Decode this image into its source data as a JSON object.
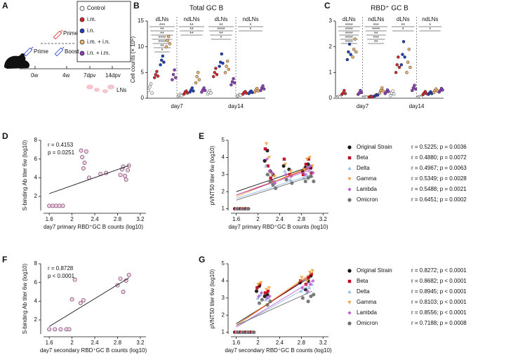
{
  "panel_a": {
    "letter": "A",
    "legend": [
      {
        "name": "Control",
        "color": "#ffffff"
      },
      {
        "name": "i.m.",
        "color": "#d7262b"
      },
      {
        "name": "i.n.",
        "color": "#1f3fbf"
      },
      {
        "name": "i.m. + i.n.",
        "color": "#f3b36b"
      },
      {
        "name": "i.n. + i.m.",
        "color": "#8e3fbf"
      }
    ],
    "prime_single": "Prime",
    "prime": "Prime",
    "boost": "Boost",
    "timeline": [
      "0w",
      "4w",
      "7dpv",
      "14dpv"
    ],
    "lns": "LNs"
  },
  "chart_data": [
    {
      "type": "dot",
      "letter": "B",
      "title": "Total GC B",
      "ylabel": "Cell counts (× 10⁵)",
      "ylim": [
        0,
        15
      ],
      "yticks": [
        0,
        5,
        10,
        15
      ],
      "subsets": [
        "dLNs",
        "ndLNs",
        "dLNs",
        "ndLNs"
      ],
      "days": [
        "day7",
        "day14"
      ],
      "colors": [
        "#ffffff",
        "#d7262b",
        "#1f3fbf",
        "#f3b36b",
        "#8e3fbf"
      ],
      "values": [
        [
          [
            1.5,
            2.2,
            2.8,
            1.0
          ],
          [
            4.0,
            4.6,
            5.2,
            4.3
          ],
          [
            6.5,
            7.4,
            8.2,
            7.0
          ],
          [
            10.0,
            11.2,
            12.0,
            10.6
          ],
          [
            3.6,
            4.6,
            5.5,
            4.0
          ]
        ],
        [
          [
            0.4,
            0.6,
            0.8,
            0.5
          ],
          [
            0.8,
            1.2,
            1.4,
            1.0
          ],
          [
            1.2,
            1.6,
            2.0,
            1.4
          ],
          [
            3.0,
            4.2,
            5.0,
            3.6
          ],
          [
            1.2,
            1.6,
            2.0,
            1.5
          ]
        ],
        [
          [
            0.8,
            1.2,
            1.5,
            1.0
          ],
          [
            4.2,
            5.0,
            5.8,
            4.6
          ],
          [
            6.2,
            7.0,
            8.6,
            6.8
          ],
          [
            5.0,
            6.2,
            7.2,
            5.6
          ],
          [
            2.6,
            3.2,
            3.8,
            3.0
          ]
        ],
        [
          [
            0.4,
            0.5,
            0.7,
            0.6
          ],
          [
            0.8,
            1.1,
            1.3,
            1.0
          ],
          [
            0.9,
            1.2,
            1.4,
            1.1
          ],
          [
            1.2,
            1.6,
            1.9,
            1.4
          ],
          [
            1.5,
            2.0,
            2.4,
            1.8
          ]
        ]
      ],
      "significance": [
        [
          "***",
          "**",
          "**",
          "****",
          "****",
          "**",
          "*"
        ],
        [
          "**",
          "**",
          "**"
        ],
        [
          "**",
          "****",
          "**",
          "*"
        ],
        [
          "*",
          "*"
        ]
      ]
    },
    {
      "type": "dot",
      "letter": "C",
      "title": "RBD⁺ GC B",
      "ylim": [
        0,
        3
      ],
      "yticks": [
        0,
        1,
        2,
        3
      ],
      "subsets": [
        "dLNs",
        "ndLNs",
        "dLNs",
        "ndLNs"
      ],
      "days": [
        "day7",
        "day14"
      ],
      "colors": [
        "#ffffff",
        "#d7262b",
        "#1f3fbf",
        "#f3b36b",
        "#8e3fbf"
      ],
      "values": [
        [
          [
            0.03,
            0.05,
            0.08,
            0.04
          ],
          [
            0.15,
            0.2,
            0.3,
            0.18
          ],
          [
            1.5,
            1.8,
            2.1,
            1.7
          ],
          [
            1.6,
            1.9,
            2.3,
            1.8
          ],
          [
            0.15,
            0.2,
            0.3,
            0.22
          ]
        ],
        [
          [
            0.03,
            0.04,
            0.05,
            0.04
          ],
          [
            0.04,
            0.06,
            0.08,
            0.05
          ],
          [
            0.08,
            0.1,
            0.14,
            0.12
          ],
          [
            0.2,
            0.3,
            0.4,
            0.28
          ],
          [
            0.18,
            0.24,
            0.32,
            0.26
          ]
        ],
        [
          [
            0.1,
            0.2,
            0.28,
            0.16
          ],
          [
            1.0,
            1.3,
            1.6,
            1.2
          ],
          [
            1.3,
            1.7,
            2.2,
            1.6
          ],
          [
            1.0,
            1.4,
            1.9,
            1.2
          ],
          [
            0.3,
            0.4,
            0.5,
            0.36
          ]
        ],
        [
          [
            0.03,
            0.05,
            0.07,
            0.04
          ],
          [
            0.14,
            0.2,
            0.26,
            0.18
          ],
          [
            0.15,
            0.2,
            0.25,
            0.18
          ],
          [
            0.22,
            0.3,
            0.36,
            0.28
          ],
          [
            0.24,
            0.3,
            0.38,
            0.32
          ]
        ]
      ],
      "significance": [
        [
          "****",
          "****",
          "****",
          "****",
          "****"
        ],
        [
          "***",
          "****",
          "**",
          "***",
          "**"
        ],
        [
          "**",
          "*"
        ],
        [
          "*",
          "*"
        ]
      ]
    },
    {
      "type": "scatter",
      "letter": "D",
      "xlabel": "day7 primary RBD⁺GC B counts (log10)",
      "ylabel": "S-binding Ab titer 6w (log10)",
      "xlim": [
        1.45,
        3.3
      ],
      "xticks": [
        1.6,
        2.0,
        2.4,
        2.8,
        3.2
      ],
      "ylim": [
        0.5,
        8
      ],
      "yticks": [
        2,
        4,
        6,
        8
      ],
      "annotations": [
        "r = 0.4153",
        "p = 0.0251"
      ],
      "color": "#f2d3df",
      "edge": "#80527f",
      "x": [
        1.6,
        1.66,
        1.72,
        1.78,
        1.84,
        2.16,
        2.18,
        2.2,
        2.22,
        2.25,
        2.3,
        2.5,
        2.6,
        2.85,
        2.88,
        2.9,
        2.93,
        2.95,
        2.98,
        3.0
      ],
      "values": [
        1,
        1,
        1,
        1,
        1,
        6.9,
        6.2,
        5.0,
        5.6,
        6.8,
        4.0,
        4.4,
        4.5,
        4.3,
        4.9,
        5.2,
        4.2,
        3.8,
        4.8,
        5.3
      ],
      "fit_x": [
        1.6,
        3.0
      ],
      "fit": [
        2.3,
        5.3
      ]
    },
    {
      "type": "scatter",
      "letter": "E",
      "xlabel": "day7 primary RBD⁺GC B counts (log10)",
      "ylabel": "pVNT50 titer 6w (log10)",
      "xlim": [
        1.45,
        3.3
      ],
      "xticks": [
        1.6,
        2.0,
        2.4,
        2.8,
        3.2
      ],
      "ylim": [
        0.9,
        5
      ],
      "yticks": [
        1,
        2,
        3,
        4,
        5
      ],
      "x": [
        1.6,
        1.7,
        1.8,
        2.15,
        2.2,
        2.25,
        2.3,
        2.5,
        2.6,
        2.85,
        2.9,
        2.95,
        3.0
      ],
      "fit_x": [
        1.6,
        3.0
      ],
      "series": [
        {
          "name": "Original Strain",
          "stat": "r = 0.5225; p = 0.0036",
          "color": "#111111",
          "marker": "circle",
          "values": [
            1,
            1,
            1,
            3.8,
            4.4,
            3.2,
            3.0,
            3.5,
            3.3,
            3.2,
            3.4,
            3.6,
            3.4
          ],
          "fit": [
            2.0,
            3.5
          ]
        },
        {
          "name": "Beta",
          "stat": "r = 0.4880; p = 0.0072",
          "color": "#c0001a",
          "marker": "square",
          "values": [
            1,
            1,
            1,
            4.5,
            3.5,
            2.8,
            2.6,
            3.9,
            3.0,
            3.0,
            3.6,
            3.9,
            3.1
          ],
          "fit": [
            1.8,
            3.4
          ]
        },
        {
          "name": "Delta",
          "stat": "r = 0.4967; p = 0.0063",
          "color": "#8fbde8",
          "marker": "triangle",
          "values": [
            1,
            1,
            1,
            3.5,
            3.0,
            2.6,
            2.7,
            3.2,
            2.7,
            2.8,
            3.0,
            3.2,
            2.9
          ],
          "fit": [
            1.6,
            3.0
          ]
        },
        {
          "name": "Gamma",
          "stat": "r = 0.5349; p = 0.0028",
          "color": "#f2a33a",
          "marker": "triangle-down",
          "values": [
            1,
            1,
            1,
            4.8,
            4.0,
            3.0,
            2.9,
            3.6,
            3.2,
            3.3,
            3.9,
            4.0,
            3.5
          ],
          "fit": [
            1.7,
            3.5
          ]
        },
        {
          "name": "Lambda",
          "stat": "r = 0.5488; p = 0.0021",
          "color": "#c05ccf",
          "marker": "diamond",
          "values": [
            1,
            1,
            1,
            3.9,
            3.2,
            3.1,
            2.5,
            3.0,
            2.9,
            3.0,
            3.4,
            3.5,
            3.1
          ],
          "fit": [
            1.8,
            3.3
          ]
        },
        {
          "name": "Omicron",
          "stat": "r = 0.6451; p = 0.0002",
          "color": "#6e6e6e",
          "marker": "circle",
          "values": [
            1,
            1,
            1,
            3.0,
            2.6,
            2.4,
            2.2,
            2.7,
            2.5,
            2.6,
            2.8,
            2.9,
            2.6
          ],
          "fit": [
            1.5,
            2.9
          ]
        }
      ]
    },
    {
      "type": "scatter",
      "letter": "F",
      "xlabel": "day7 secondary RBD⁺GC B counts (log10)",
      "ylabel": "S-binding Ab titer 6w (log10)",
      "xlim": [
        1.45,
        3.3
      ],
      "xticks": [
        1.6,
        2.0,
        2.4,
        2.8,
        3.2
      ],
      "ylim": [
        0.5,
        8
      ],
      "yticks": [
        2,
        4,
        6,
        8
      ],
      "annotations": [
        "r = 0.8728",
        "p < 0.0001"
      ],
      "color": "#f2d3df",
      "edge": "#80527f",
      "x": [
        1.6,
        1.7,
        1.8,
        1.9,
        1.95,
        2.0,
        2.05,
        2.15,
        2.2,
        2.8,
        2.85,
        2.9,
        2.95,
        3.0
      ],
      "values": [
        1,
        1,
        1,
        1,
        1,
        4.2,
        6.3,
        3.8,
        4.1,
        5.7,
        6.4,
        5.0,
        6.2,
        6.8
      ],
      "fit_x": [
        1.6,
        3.0
      ],
      "fit": [
        1.3,
        6.5
      ]
    },
    {
      "type": "scatter",
      "letter": "G",
      "xlabel": "day7 secondary RBD⁺GC B counts (log10)",
      "ylabel": "pVNT50 titer 6w (log10)",
      "xlim": [
        1.45,
        3.3
      ],
      "xticks": [
        1.6,
        2.0,
        2.4,
        2.8,
        3.2
      ],
      "ylim": [
        0.9,
        5
      ],
      "yticks": [
        1,
        2,
        3,
        4,
        5
      ],
      "x": [
        1.6,
        1.7,
        1.8,
        1.9,
        2.0,
        2.05,
        2.15,
        2.2,
        2.8,
        2.9,
        2.95,
        3.0
      ],
      "fit_x": [
        1.6,
        3.0
      ],
      "series": [
        {
          "name": "Original Strain",
          "stat": "r = 0.8272; p < 0.0001",
          "color": "#111111",
          "marker": "circle",
          "values": [
            1,
            1,
            1,
            1,
            3.4,
            3.7,
            3.1,
            3.2,
            3.9,
            3.5,
            4.0,
            4.3
          ],
          "fit": [
            1.5,
            4.3
          ]
        },
        {
          "name": "Beta",
          "stat": "r = 0.8682; p < 0.0001",
          "color": "#c0001a",
          "marker": "square",
          "values": [
            1,
            1,
            1,
            1,
            3.6,
            3.8,
            3.3,
            3.4,
            4.0,
            3.8,
            4.2,
            4.4
          ],
          "fit": [
            1.4,
            4.4
          ]
        },
        {
          "name": "Delta",
          "stat": "r = 0.8945; p < 0.0001",
          "color": "#8fbde8",
          "marker": "triangle",
          "values": [
            1,
            1,
            1,
            1,
            3.0,
            3.2,
            2.9,
            3.0,
            3.4,
            3.3,
            3.6,
            3.8
          ],
          "fit": [
            1.3,
            3.8
          ]
        },
        {
          "name": "Gamma",
          "stat": "r = 0.8103; p < 0.0001",
          "color": "#f2a33a",
          "marker": "triangle-down",
          "values": [
            1,
            1,
            1,
            1,
            3.8,
            3.9,
            3.5,
            3.6,
            4.2,
            4.0,
            4.5,
            4.6
          ],
          "fit": [
            1.4,
            4.5
          ]
        },
        {
          "name": "Lambda",
          "stat": "r = 0.8556; p < 0.0001",
          "color": "#c05ccf",
          "marker": "diamond",
          "values": [
            1,
            1,
            1,
            1,
            3.1,
            3.3,
            3.0,
            3.1,
            3.6,
            3.4,
            3.8,
            4.0
          ],
          "fit": [
            1.3,
            4.0
          ]
        },
        {
          "name": "Omicron",
          "stat": "r = 0.7188; p = 0.0008",
          "color": "#6e6e6e",
          "marker": "circle",
          "values": [
            1,
            1,
            1,
            1,
            2.7,
            2.9,
            2.6,
            2.8,
            3.0,
            2.8,
            3.1,
            3.2
          ],
          "fit": [
            1.4,
            3.4
          ]
        }
      ]
    }
  ]
}
